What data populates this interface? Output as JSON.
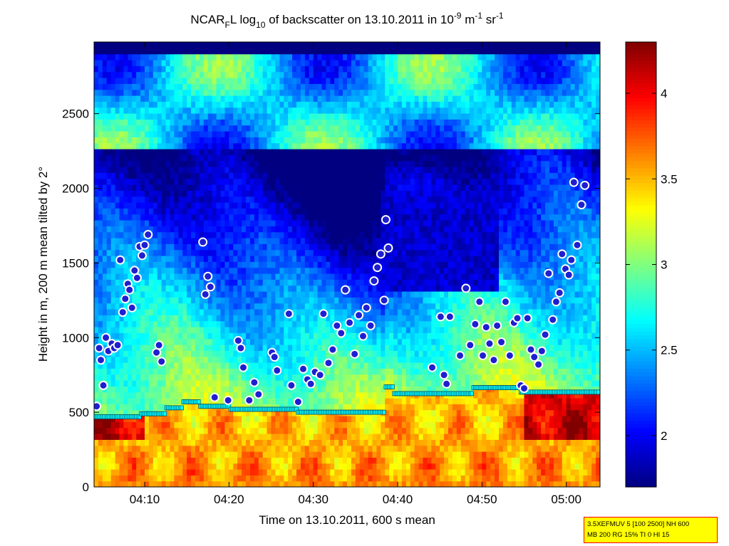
{
  "chart_data": {
    "type": "heatmap",
    "title": {
      "base": "NCAR",
      "sub": "F",
      "part1": "L log",
      "sub2": "10",
      "part2": " of backscatter on 13.10.2011 in 10",
      "sup1": "-9",
      "part3": " m",
      "sup2": "-1",
      "part4": " sr",
      "sup3": "-1"
    },
    "xlabel": "Time on 13.10.2011, 600 s mean",
    "ylabel": "Height in m, 200 m mean tilted by 2°",
    "x_ticks": [
      "04:10",
      "04:20",
      "04:30",
      "04:40",
      "04:50",
      "05:00"
    ],
    "x_tick_values": [
      10,
      20,
      30,
      40,
      50,
      60
    ],
    "xlim": [
      4,
      64
    ],
    "y_ticks": [
      "0",
      "500",
      "1000",
      "1500",
      "2000",
      "2500"
    ],
    "y_tick_values": [
      0,
      500,
      1000,
      1500,
      2000,
      2500
    ],
    "ylim": [
      0,
      2980
    ],
    "colorbar": {
      "ticks": [
        "2",
        "2.5",
        "3",
        "3.5",
        "4"
      ],
      "tick_values": [
        2,
        2.5,
        3,
        3.5,
        4
      ],
      "range": [
        1.7,
        4.3
      ],
      "colormap": "jet"
    },
    "aerosol_layer_top": [
      [
        4,
        470
      ],
      [
        9.5,
        490
      ],
      [
        12.5,
        530
      ],
      [
        14.5,
        570
      ],
      [
        16.5,
        540
      ],
      [
        20,
        520
      ],
      [
        28,
        500
      ],
      [
        38.5,
        670
      ],
      [
        39.5,
        625
      ],
      [
        49,
        665
      ],
      [
        54.5,
        635
      ],
      [
        64,
        640
      ]
    ],
    "layer_points": [
      [
        4.3,
        540
      ],
      [
        4.6,
        930
      ],
      [
        4.8,
        850
      ],
      [
        5.1,
        680
      ],
      [
        5.4,
        1000
      ],
      [
        5.7,
        910
      ],
      [
        6.1,
        960
      ],
      [
        6.4,
        930
      ],
      [
        6.8,
        950
      ],
      [
        7.1,
        1520
      ],
      [
        7.4,
        1170
      ],
      [
        7.7,
        1260
      ],
      [
        8.0,
        1360
      ],
      [
        8.2,
        1320
      ],
      [
        8.5,
        1200
      ],
      [
        8.8,
        1450
      ],
      [
        9.1,
        1400
      ],
      [
        9.4,
        1610
      ],
      [
        9.7,
        1550
      ],
      [
        10.0,
        1620
      ],
      [
        10.4,
        1690
      ],
      [
        11.4,
        900
      ],
      [
        11.7,
        950
      ],
      [
        12.0,
        840
      ],
      [
        16.9,
        1640
      ],
      [
        17.2,
        1290
      ],
      [
        17.5,
        1410
      ],
      [
        17.8,
        1340
      ],
      [
        18.3,
        600
      ],
      [
        19.9,
        580
      ],
      [
        21.1,
        980
      ],
      [
        21.4,
        930
      ],
      [
        21.7,
        800
      ],
      [
        22.4,
        580
      ],
      [
        23.0,
        700
      ],
      [
        23.5,
        620
      ],
      [
        25.1,
        900
      ],
      [
        25.4,
        870
      ],
      [
        25.7,
        780
      ],
      [
        27.1,
        1160
      ],
      [
        27.4,
        680
      ],
      [
        28.2,
        570
      ],
      [
        28.8,
        790
      ],
      [
        29.3,
        720
      ],
      [
        29.7,
        690
      ],
      [
        30.2,
        770
      ],
      [
        30.8,
        750
      ],
      [
        31.2,
        1160
      ],
      [
        31.8,
        830
      ],
      [
        32.3,
        920
      ],
      [
        32.8,
        1080
      ],
      [
        33.3,
        1030
      ],
      [
        33.8,
        1320
      ],
      [
        34.3,
        1100
      ],
      [
        34.9,
        890
      ],
      [
        35.4,
        1150
      ],
      [
        35.9,
        1010
      ],
      [
        36.3,
        1200
      ],
      [
        36.8,
        1080
      ],
      [
        37.2,
        1380
      ],
      [
        37.6,
        1470
      ],
      [
        38.0,
        1560
      ],
      [
        38.4,
        1250
      ],
      [
        38.6,
        1790
      ],
      [
        38.9,
        1600
      ],
      [
        44.1,
        800
      ],
      [
        45.1,
        1140
      ],
      [
        45.5,
        750
      ],
      [
        45.8,
        690
      ],
      [
        46.2,
        1140
      ],
      [
        47.4,
        880
      ],
      [
        48.1,
        1330
      ],
      [
        48.6,
        950
      ],
      [
        49.2,
        1090
      ],
      [
        49.7,
        1240
      ],
      [
        50.1,
        880
      ],
      [
        50.5,
        1070
      ],
      [
        50.9,
        960
      ],
      [
        51.4,
        850
      ],
      [
        51.8,
        1080
      ],
      [
        52.3,
        970
      ],
      [
        52.8,
        1240
      ],
      [
        53.3,
        880
      ],
      [
        53.8,
        1100
      ],
      [
        54.2,
        1130
      ],
      [
        54.6,
        680
      ],
      [
        55.0,
        660
      ],
      [
        55.4,
        1130
      ],
      [
        55.8,
        920
      ],
      [
        56.2,
        870
      ],
      [
        56.7,
        820
      ],
      [
        57.1,
        910
      ],
      [
        57.5,
        1020
      ],
      [
        57.9,
        1430
      ],
      [
        58.4,
        1120
      ],
      [
        58.8,
        1240
      ],
      [
        59.2,
        1300
      ],
      [
        59.5,
        1560
      ],
      [
        59.9,
        1460
      ],
      [
        60.3,
        1420
      ],
      [
        60.6,
        1520
      ],
      [
        60.9,
        2040
      ],
      [
        61.3,
        1620
      ],
      [
        61.8,
        1890
      ],
      [
        62.2,
        2020
      ]
    ]
  },
  "info_box": {
    "line1": "3.5XEFMUV 5 [100 2500] NH 600",
    "line2": "MB 200 RG 15% TI 0 HI 15"
  },
  "colors": {
    "marker_fill": "#1f1fd0",
    "marker_edge": "#ffffff",
    "layer_line_fill": "#00ffff",
    "layer_line_edge": "#004a60"
  }
}
